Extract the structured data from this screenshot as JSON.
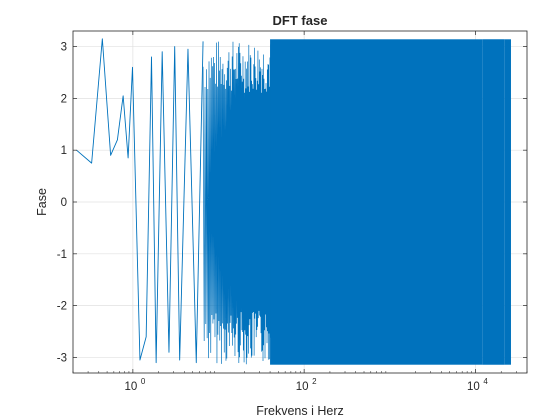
{
  "chart_data": {
    "type": "line",
    "title": "DFT fase",
    "xlabel": "Frekvens i Herz",
    "ylabel": "Fase",
    "xscale": "log",
    "xlim": [
      0.2,
      40000
    ],
    "ylim": [
      -3.3,
      3.3
    ],
    "grid": true,
    "legend": "none",
    "line_color": "#0072BD",
    "ytick_labels": [
      "3",
      "2",
      "1",
      "0",
      "-1",
      "-2",
      "-3"
    ],
    "yticks": [
      3,
      2,
      1,
      0,
      -1,
      -2,
      -3
    ],
    "xticks": [
      {
        "base": "10",
        "exp": "0"
      },
      {
        "base": "10",
        "exp": "2"
      },
      {
        "base": "10",
        "exp": "4"
      }
    ],
    "xtick_values": [
      1,
      100,
      10000
    ],
    "series": [
      {
        "x": [
          0.22,
          0.33,
          0.44,
          0.55,
          0.66,
          0.77,
          0.88,
          0.99,
          1.21,
          1.43,
          1.65,
          1.87,
          2.2,
          2.64,
          3.08,
          3.52,
          4.4,
          5.5,
          6.6
        ],
        "y": [
          1.0,
          0.75,
          3.15,
          0.9,
          1.2,
          2.05,
          0.85,
          2.6,
          -3.05,
          -2.6,
          2.8,
          -3.1,
          2.9,
          -2.9,
          3.0,
          -3.05,
          2.95,
          -3.1,
          3.1
        ],
        "dense_band": {
          "x_from": 6.6,
          "x_to": 12000,
          "y_min": -3.14,
          "y_max": 3.14
        },
        "tail_segment": {
          "x_from": 12000,
          "x_to": 22000,
          "y_min": -3.14,
          "y_max": 3.14
        },
        "high_bars": {
          "x_from": 22000,
          "x_to": 26000,
          "y_min": -3.14,
          "y_max": 3.14
        }
      }
    ]
  }
}
